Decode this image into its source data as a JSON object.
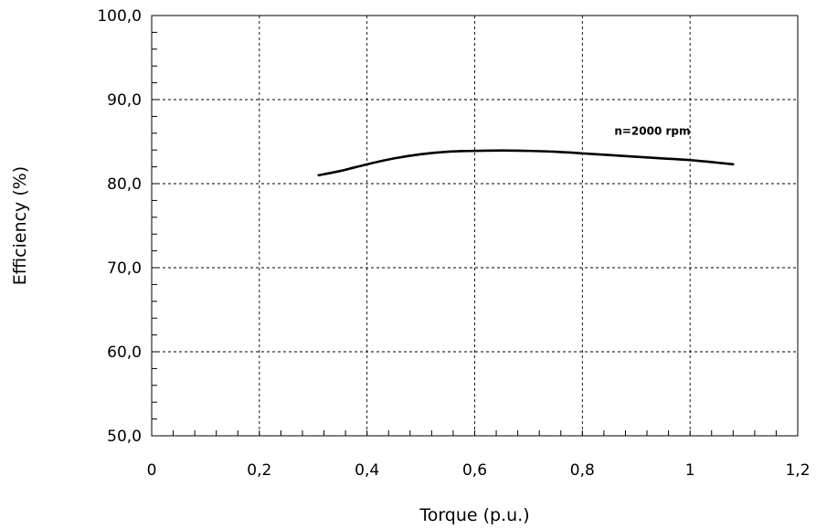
{
  "chart_data": {
    "type": "line",
    "title": "",
    "xlabel": "Torque (p.u.)",
    "ylabel": "Efficiency (%)",
    "xlim": [
      0,
      1.2
    ],
    "ylim": [
      50,
      100
    ],
    "x_ticks": [
      0,
      0.2,
      0.4,
      0.6,
      0.8,
      1.0,
      1.2
    ],
    "x_tick_labels": [
      "0",
      "0,2",
      "0,4",
      "0,6",
      "0,8",
      "1",
      "1,2"
    ],
    "y_ticks": [
      50,
      60,
      70,
      80,
      90,
      100
    ],
    "y_tick_labels": [
      "50,0",
      "60,0",
      "70,0",
      "80,0",
      "90,0",
      "100,0"
    ],
    "grid": true,
    "series": [
      {
        "x": [
          0.31,
          0.35,
          0.4,
          0.45,
          0.5,
          0.55,
          0.6,
          0.65,
          0.7,
          0.75,
          0.8,
          0.85,
          0.9,
          0.95,
          1.0,
          1.05,
          1.08
        ],
        "y": [
          81.0,
          81.5,
          82.3,
          83.0,
          83.5,
          83.8,
          83.9,
          83.95,
          83.9,
          83.8,
          83.6,
          83.4,
          83.2,
          83.0,
          82.8,
          82.5,
          82.3
        ]
      }
    ],
    "annotations": [
      {
        "text": "n=2000 rpm",
        "x": 0.93,
        "y": 85.8
      }
    ]
  }
}
